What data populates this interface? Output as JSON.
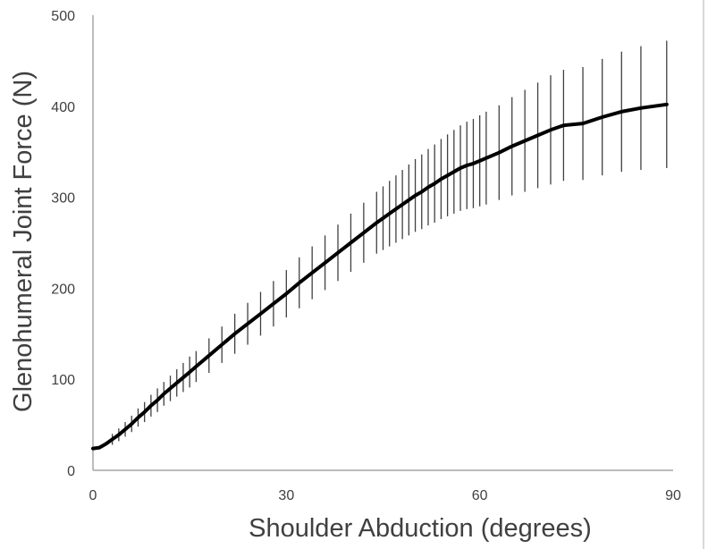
{
  "chart_data": {
    "type": "line",
    "title": "",
    "xlabel": "Shoulder Abduction (degrees)",
    "ylabel": "Glenohumeral Joint Force (N)",
    "xlim": [
      0,
      90
    ],
    "ylim": [
      0,
      500
    ],
    "xticks": [
      "0",
      "30",
      "60",
      "90"
    ],
    "yticks": [
      "0",
      "100",
      "200",
      "300",
      "400",
      "500"
    ],
    "grid": false,
    "legend": "none",
    "line_color": "#000000",
    "error_bar_color": "#404040",
    "axis_color": "#a6a6a6",
    "series": [
      {
        "x": [
          0,
          1,
          2,
          3,
          4,
          5,
          6,
          7,
          8,
          9,
          10,
          11,
          12,
          13,
          14,
          15,
          16,
          18,
          20,
          22,
          24,
          26,
          28,
          30,
          32,
          34,
          36,
          38,
          40,
          42,
          44,
          45,
          46,
          47,
          48,
          49,
          50,
          51,
          52,
          53,
          54,
          55,
          56,
          57,
          58,
          59,
          60,
          61,
          63,
          65,
          67,
          69,
          71,
          73,
          76,
          79,
          82,
          85,
          89
        ],
        "y": [
          24,
          25,
          29,
          34,
          39,
          45,
          51,
          58,
          64,
          71,
          77,
          84,
          90,
          96,
          102,
          108,
          114,
          126,
          138,
          150,
          161,
          172,
          183,
          194,
          206,
          217,
          228,
          239,
          250,
          261,
          272,
          277,
          282,
          287,
          292,
          297,
          302,
          306,
          311,
          315,
          320,
          324,
          328,
          332,
          335,
          337,
          340,
          343,
          349,
          356,
          362,
          368,
          374,
          379,
          381,
          388,
          394,
          398,
          402
        ],
        "error": [
          2,
          3,
          4,
          6,
          7,
          8,
          9,
          10,
          11,
          12,
          13,
          13,
          14,
          15,
          16,
          17,
          17,
          19,
          20,
          22,
          23,
          24,
          25,
          26,
          28,
          29,
          30,
          31,
          32,
          33,
          34,
          35,
          36,
          37,
          38,
          39,
          40,
          41,
          42,
          43,
          44,
          45,
          46,
          47,
          48,
          49,
          50,
          51,
          52,
          54,
          56,
          58,
          60,
          61,
          62,
          64,
          66,
          68,
          70
        ]
      }
    ]
  }
}
